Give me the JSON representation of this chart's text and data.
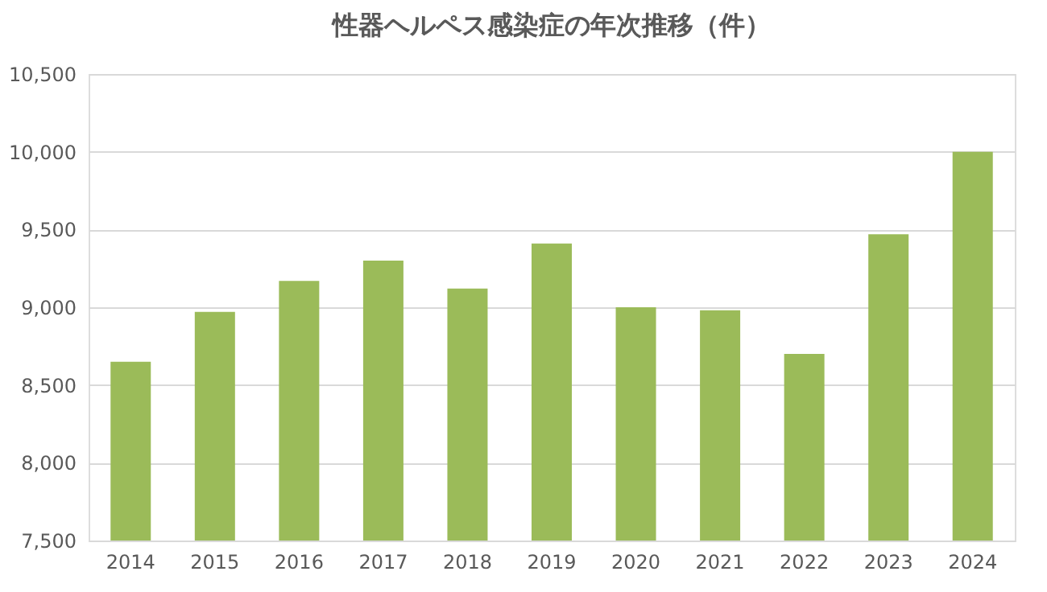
{
  "chart_data": {
    "type": "bar",
    "title": "性器ヘルペス感染症の年次推移（件）",
    "categories": [
      "2014",
      "2015",
      "2016",
      "2017",
      "2018",
      "2019",
      "2020",
      "2021",
      "2022",
      "2023",
      "2024"
    ],
    "values": [
      8650,
      8970,
      9170,
      9300,
      9120,
      9410,
      9000,
      8980,
      8700,
      9470,
      10000
    ],
    "color": "#9bbb59",
    "ylim": [
      7500,
      10500
    ],
    "yticks": [
      {
        "value": 7500,
        "label": "7,500"
      },
      {
        "value": 8000,
        "label": "8,000"
      },
      {
        "value": 8500,
        "label": "8,500"
      },
      {
        "value": 9000,
        "label": "9,000"
      },
      {
        "value": 9500,
        "label": "9,500"
      },
      {
        "value": 10000,
        "label": "10,000"
      },
      {
        "value": 10500,
        "label": "10,500"
      }
    ],
    "grid": "y"
  }
}
